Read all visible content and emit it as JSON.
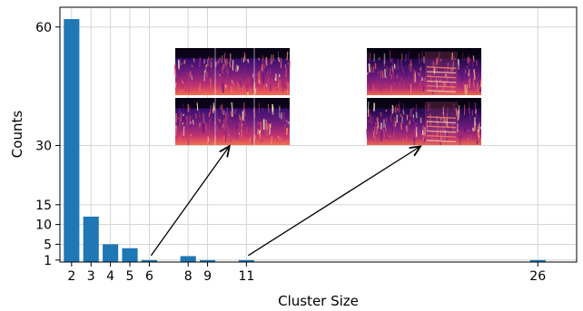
{
  "chart_data": {
    "type": "bar",
    "xlabel": "Cluster Size",
    "ylabel": "Counts",
    "x": [
      2,
      3,
      4,
      5,
      6,
      8,
      9,
      11,
      26
    ],
    "values": [
      62,
      12,
      5,
      4,
      1,
      2,
      1,
      1,
      1
    ],
    "xticks": [
      2,
      3,
      4,
      5,
      6,
      8,
      9,
      11,
      26
    ],
    "yticks": [
      1,
      5,
      10,
      15,
      30,
      60
    ],
    "xlim": [
      1.4,
      28
    ],
    "ylim": [
      0.5,
      65
    ],
    "grid": true,
    "bar_color": "#1f77b4",
    "annotations": [
      {
        "from_x": 6,
        "target": "spectrogram-pair-left"
      },
      {
        "from_x": 11,
        "target": "spectrogram-pair-right"
      }
    ],
    "insets": [
      {
        "name": "spectrogram-pair-left",
        "kind": "spectrogram",
        "panels": 2
      },
      {
        "name": "spectrogram-pair-right",
        "kind": "spectrogram",
        "panels": 2
      }
    ]
  }
}
